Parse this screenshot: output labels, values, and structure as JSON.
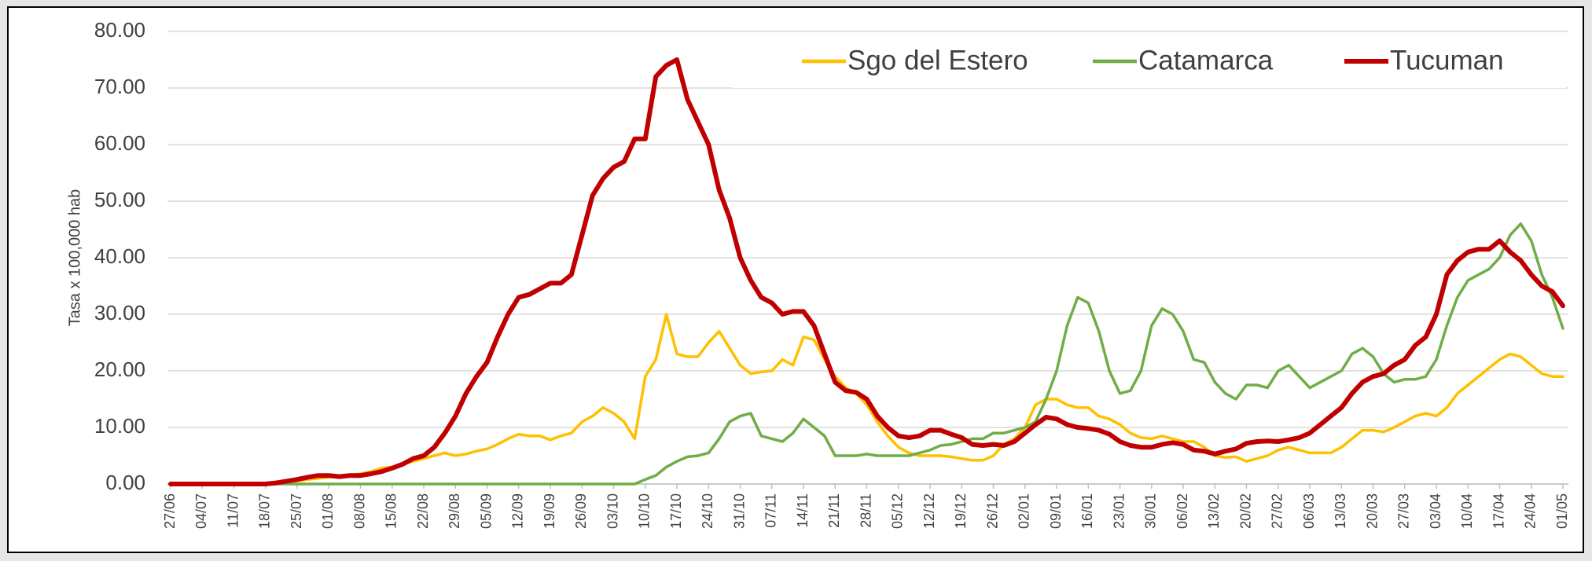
{
  "chart_data": {
    "type": "line",
    "y_label": "Tasa x 100,000 hab",
    "categories": [
      "27/06",
      null,
      null,
      "04/07",
      null,
      null,
      "11/07",
      null,
      null,
      "18/07",
      null,
      null,
      "25/07",
      null,
      null,
      "01/08",
      null,
      null,
      "08/08",
      null,
      null,
      "15/08",
      null,
      null,
      "22/08",
      null,
      null,
      "29/08",
      null,
      null,
      "05/09",
      null,
      null,
      "12/09",
      null,
      null,
      "19/09",
      null,
      null,
      "26/09",
      null,
      null,
      "03/10",
      null,
      null,
      "10/10",
      null,
      null,
      "17/10",
      null,
      null,
      "24/10",
      null,
      null,
      "31/10",
      null,
      null,
      "07/11",
      null,
      null,
      "14/11",
      null,
      null,
      "21/11",
      null,
      null,
      "28/11",
      null,
      null,
      "05/12",
      null,
      null,
      "12/12",
      null,
      null,
      "19/12",
      null,
      null,
      "26/12",
      null,
      null,
      "02/01",
      null,
      null,
      "09/01",
      null,
      null,
      "16/01",
      null,
      null,
      "23/01",
      null,
      null,
      "30/01",
      null,
      null,
      "06/02",
      null,
      null,
      "13/02",
      null,
      null,
      "20/02",
      null,
      null,
      "27/02",
      null,
      null,
      "06/03",
      null,
      null,
      "13/03",
      null,
      null,
      "20/03",
      null,
      null,
      "27/03",
      null,
      null,
      "03/04",
      null,
      null,
      "10/04",
      null,
      null,
      "17/04",
      null,
      null,
      "24/04",
      null,
      null,
      "01/05"
    ],
    "series": [
      {
        "name": "Sgo del Estero",
        "color": "#ffc000",
        "width": 3.5,
        "values": [
          0,
          0,
          0,
          0,
          0,
          0,
          0,
          0,
          0,
          0,
          0,
          0.3,
          0.5,
          0.8,
          1.0,
          1.2,
          1.3,
          1.6,
          1.8,
          2.2,
          2.8,
          3,
          3.5,
          4,
          4.5,
          5,
          5.5,
          5,
          5.3,
          5.8,
          6.2,
          7,
          8,
          8.8,
          8.5,
          8.5,
          7.8,
          8.5,
          9,
          11,
          12,
          13.5,
          12.5,
          11,
          8,
          19,
          22,
          30,
          23,
          22.5,
          22.5,
          25,
          27,
          24,
          21,
          19.5,
          19.8,
          20,
          22,
          21,
          26,
          25.5,
          22,
          19,
          17,
          16,
          14,
          11,
          8.5,
          6.5,
          5.5,
          5,
          5,
          5,
          4.8,
          4.5,
          4.2,
          4.2,
          5,
          7,
          8,
          10,
          14,
          15,
          15,
          14,
          13.5,
          13.5,
          12,
          11.5,
          10.5,
          9,
          8.2,
          8,
          8.5,
          8,
          7.5,
          7.5,
          6.5,
          5,
          4.7,
          4.8,
          4,
          4.5,
          5,
          6,
          6.5,
          6,
          5.5,
          5.5,
          5.5,
          6.5,
          8,
          9.5,
          9.5,
          9.2,
          10,
          11,
          12,
          12.5,
          12,
          13.5,
          16,
          17.5,
          19,
          20.5,
          22,
          23,
          22.5,
          21,
          19.5,
          19,
          19
        ]
      },
      {
        "name": "Catamarca",
        "color": "#70ad47",
        "width": 3.5,
        "values": [
          0,
          0,
          0,
          0,
          0,
          0,
          0,
          0,
          0,
          0,
          0,
          0,
          0,
          0,
          0,
          0,
          0,
          0,
          0,
          0,
          0,
          0,
          0,
          0,
          0,
          0,
          0,
          0,
          0,
          0,
          0,
          0,
          0,
          0,
          0,
          0,
          0,
          0,
          0,
          0,
          0,
          0,
          0,
          0,
          0,
          0.8,
          1.5,
          3,
          4,
          4.8,
          5,
          5.5,
          8,
          11,
          12,
          12.5,
          8.5,
          8,
          7.5,
          9,
          11.5,
          10,
          8.5,
          5,
          5,
          5,
          5.3,
          5,
          5,
          5,
          5,
          5.5,
          6,
          6.8,
          7,
          7.5,
          8,
          8,
          9,
          9,
          9.5,
          10,
          11,
          15,
          20,
          28,
          33,
          32,
          27,
          20,
          16,
          16.5,
          20,
          28,
          31,
          30,
          27,
          22,
          21.5,
          18,
          16,
          15,
          17.5,
          17.5,
          17,
          20,
          21,
          19,
          17,
          18,
          19,
          20,
          23,
          24,
          22.5,
          19.5,
          18,
          18.5,
          18.5,
          19,
          22,
          28,
          33,
          36,
          37,
          38,
          40,
          44,
          46,
          43,
          37,
          33,
          27.5
        ]
      },
      {
        "name": "Tucuman",
        "color": "#c00000",
        "width": 6,
        "values": [
          0,
          0,
          0,
          0,
          0,
          0,
          0,
          0,
          0,
          0,
          0.2,
          0.5,
          0.8,
          1.2,
          1.5,
          1.5,
          1.3,
          1.5,
          1.5,
          1.8,
          2.2,
          2.8,
          3.5,
          4.5,
          5,
          6.5,
          9,
          12,
          16,
          19,
          21.5,
          26,
          30,
          33,
          33.5,
          34.5,
          35.5,
          35.5,
          37,
          44,
          51,
          54,
          56,
          57,
          61,
          61,
          72,
          74,
          75,
          68,
          64,
          60,
          52,
          47,
          40,
          36,
          33,
          32,
          30,
          30.5,
          30.5,
          28,
          23,
          18,
          16.5,
          16.2,
          15,
          12,
          10,
          8.5,
          8.2,
          8.5,
          9.5,
          9.5,
          8.8,
          8.2,
          7,
          6.8,
          7,
          6.8,
          7.5,
          9,
          10.5,
          11.8,
          11.5,
          10.5,
          10,
          9.8,
          9.5,
          8.8,
          7.5,
          6.8,
          6.5,
          6.5,
          7,
          7.3,
          7,
          6,
          5.8,
          5.3,
          5.8,
          6.2,
          7.2,
          7.5,
          7.6,
          7.5,
          7.8,
          8.2,
          9,
          10.5,
          12,
          13.5,
          16,
          18,
          19,
          19.5,
          21,
          22,
          24.5,
          26,
          30,
          37,
          39.5,
          41,
          41.5,
          41.5,
          43,
          41,
          39.5,
          37,
          35,
          34,
          31.5
        ]
      }
    ],
    "ylim": [
      0,
      80
    ],
    "yticks": [
      {
        "value": 0,
        "label": "0.00"
      },
      {
        "value": 10,
        "label": "10.00"
      },
      {
        "value": 20,
        "label": "20.00"
      },
      {
        "value": 30,
        "label": "30.00"
      },
      {
        "value": 40,
        "label": "40.00"
      },
      {
        "value": 50,
        "label": "50.00"
      },
      {
        "value": 60,
        "label": "60.00"
      },
      {
        "value": 70,
        "label": "70.00"
      },
      {
        "value": 80,
        "label": "80.00"
      }
    ],
    "grid": true,
    "legend": "top-right"
  }
}
